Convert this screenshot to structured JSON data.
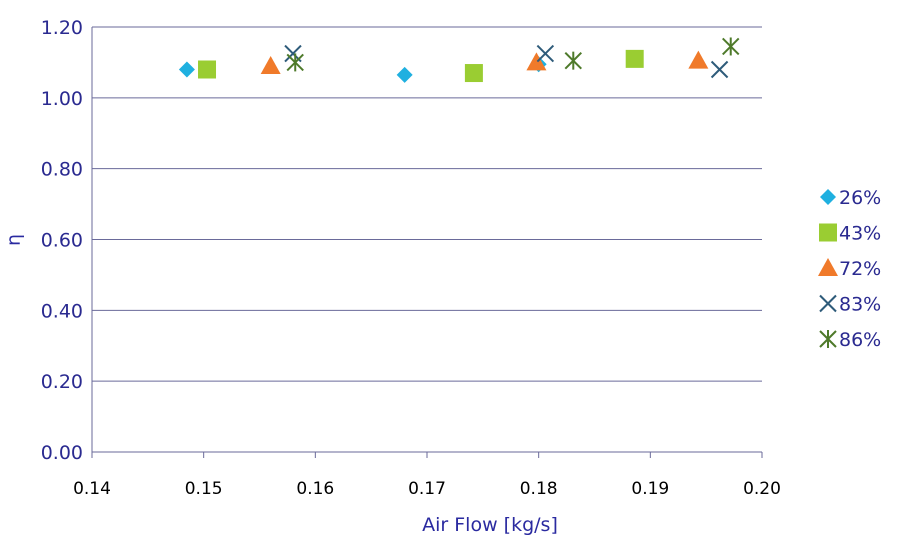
{
  "chart_data": {
    "type": "scatter",
    "title": "",
    "xlabel": "Air Flow [kg/s]",
    "ylabel": "η",
    "xlim": [
      0.14,
      0.2
    ],
    "ylim": [
      0.0,
      1.2
    ],
    "x_ticks": [
      "0.14",
      "0.15",
      "0.16",
      "0.17",
      "0.18",
      "0.19",
      "0.20"
    ],
    "y_ticks": [
      "0.00",
      "0.20",
      "0.40",
      "0.60",
      "0.80",
      "1.00",
      "1.20"
    ],
    "grid": "horizontal",
    "legend_position": "right",
    "series": [
      {
        "name": "26%",
        "marker": "diamond",
        "color": "#1fb0e0",
        "points": [
          [
            0.1485,
            1.08
          ],
          [
            0.168,
            1.065
          ],
          [
            0.18,
            1.095
          ]
        ]
      },
      {
        "name": "43%",
        "marker": "square",
        "color": "#9acd32",
        "points": [
          [
            0.1503,
            1.08
          ],
          [
            0.1742,
            1.07
          ],
          [
            0.1886,
            1.11
          ]
        ]
      },
      {
        "name": "72%",
        "marker": "triangle",
        "color": "#f07a2a",
        "points": [
          [
            0.156,
            1.09
          ],
          [
            0.1798,
            1.1
          ],
          [
            0.1943,
            1.105
          ]
        ]
      },
      {
        "name": "83%",
        "marker": "x",
        "color": "#2e5b7a",
        "points": [
          [
            0.158,
            1.125
          ],
          [
            0.1806,
            1.125
          ],
          [
            0.1962,
            1.08
          ]
        ]
      },
      {
        "name": "86%",
        "marker": "asterisk",
        "color": "#4e7a2a",
        "points": [
          [
            0.1582,
            1.1
          ],
          [
            0.1831,
            1.105
          ],
          [
            0.1972,
            1.145
          ]
        ]
      }
    ]
  }
}
